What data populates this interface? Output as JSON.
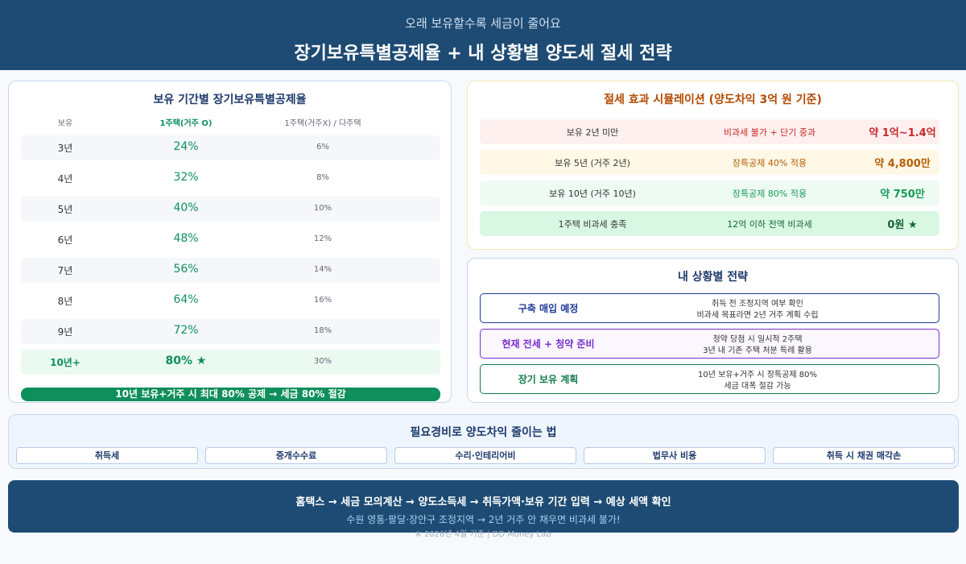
{
  "header": {
    "subtitle": "오래 보유할수록 세금이 줄어요",
    "title": "장기보유특별공제율 + 내 상황별 양도세 절세 전략"
  },
  "holding_table": {
    "title": "보유 기간별 장기보유특별공제율",
    "columns": [
      "보유",
      "1주택(거주 O)",
      "1주택(거주X) / 다주택"
    ],
    "rows": [
      [
        "3년",
        "24%",
        "6%"
      ],
      [
        "4년",
        "32%",
        "8%"
      ],
      [
        "5년",
        "40%",
        "10%"
      ],
      [
        "6년",
        "48%",
        "12%"
      ],
      [
        "7년",
        "56%",
        "14%"
      ],
      [
        "8년",
        "64%",
        "16%"
      ],
      [
        "9년",
        "72%",
        "18%"
      ],
      [
        "10년+",
        "80% ★",
        "30%"
      ]
    ],
    "note": "10년 보유+거주 시 최대 80% 공제 → 세금 80% 절감"
  },
  "simulation": {
    "title": "절세 효과 시뮬레이션 (양도차익 3억 원 기준)",
    "rows": [
      [
        "보유 2년 미만",
        "비과세 불가 + 단기 중과",
        "약 1억~1.4억"
      ],
      [
        "보유 5년 (거주 2년)",
        "장특공제 40% 적용",
        "약 4,800만"
      ],
      [
        "보유 10년 (거주 10년)",
        "장특공제 80% 적용",
        "약 750만"
      ],
      [
        "1주택 비과세 충족",
        "12억 이하 전액 비과세",
        "0원 ★"
      ]
    ]
  },
  "strategy": {
    "title": "내 상황별 전략",
    "items": [
      {
        "label": "구축 매입 예정",
        "lines": [
          "취득 전 조정지역 여부 확인",
          "비과세 목표라면 2년 거주 계획 수립"
        ]
      },
      {
        "label": "현재 전세 + 청약 준비",
        "lines": [
          "청약 당첨 시 일시적 2주택",
          "3년 내 기존 주택 처분 특례 활용"
        ]
      },
      {
        "label": "장기 보유 계획",
        "lines": [
          "10년 보유+거주 시 장특공제 80%",
          "세금 대폭 절감 가능"
        ]
      }
    ]
  },
  "expenses": {
    "title": "필요경비로 양도차익 줄이는 법",
    "items": [
      "취득세",
      "중개수수료",
      "수리·인테리어비",
      "법무사 비용",
      "취득 시 채권 매각손"
    ]
  },
  "footer": {
    "lines": [
      "홈택스 → 세금 모의계산 → 양도소득세 → 취득가액·보유 기간 입력 → 예상 세액 확인",
      "수원 영통·팔달·장안구 조정지역 → 2년 거주 안 채우면 비과세 불가!",
      "※ 2026년 4월 기준 | DD Money Lab"
    ]
  }
}
